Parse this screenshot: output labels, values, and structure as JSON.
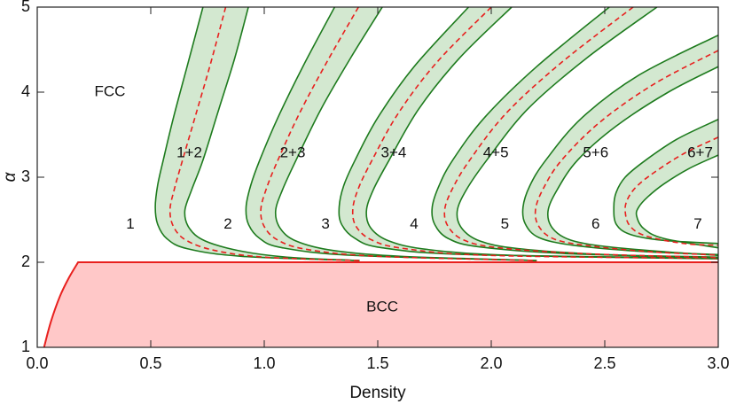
{
  "chart_data": {
    "type": "phase-diagram",
    "xlabel": "Density",
    "ylabel": "α",
    "xlim": [
      0,
      3
    ],
    "ylim": [
      1,
      5
    ],
    "xticks": [
      {
        "value": 0,
        "label": "0.0"
      },
      {
        "value": 0.5,
        "label": "0.5"
      },
      {
        "value": 1,
        "label": "1.0"
      },
      {
        "value": 1.5,
        "label": "1.5"
      },
      {
        "value": 2,
        "label": "2.0"
      },
      {
        "value": 2.5,
        "label": "2.5"
      },
      {
        "value": 3,
        "label": "3.0"
      }
    ],
    "yticks": [
      1,
      2,
      3,
      4,
      5
    ],
    "boundary_color": "#1e7b1e",
    "middle_color": "#e8201e",
    "band_fill": "#d3e8d0",
    "bands": [
      {
        "lower": {
          "x": [
            0.73,
            0.66,
            0.6,
            0.555,
            0.53,
            0.52,
            0.53,
            0.57,
            0.66,
            0.9,
            1.42
          ],
          "y": [
            5,
            4.3,
            3.7,
            3.2,
            2.9,
            2.65,
            2.45,
            2.28,
            2.16,
            2.07,
            2.02
          ]
        },
        "upper": {
          "x": [
            0.93,
            0.87,
            0.8,
            0.73,
            0.68,
            0.65,
            0.67,
            0.74,
            0.9,
            1.1,
            1.42
          ],
          "y": [
            5,
            4.4,
            3.8,
            3.2,
            2.85,
            2.6,
            2.4,
            2.25,
            2.13,
            2.06,
            2.02
          ]
        },
        "middle": {
          "x": [
            0.83,
            0.765,
            0.7,
            0.64,
            0.605,
            0.585,
            0.6,
            0.655,
            0.78,
            1.0,
            1.42
          ],
          "y": [
            5,
            4.35,
            3.75,
            3.2,
            2.87,
            2.62,
            2.42,
            2.26,
            2.14,
            2.06,
            2.02
          ]
        }
      },
      {
        "lower": {
          "x": [
            1.31,
            1.17,
            1.06,
            0.98,
            0.94,
            0.92,
            0.93,
            0.98,
            1.08,
            1.4,
            2.2
          ],
          "y": [
            5,
            4.3,
            3.7,
            3.2,
            2.9,
            2.65,
            2.45,
            2.28,
            2.17,
            2.08,
            2.02
          ]
        },
        "upper": {
          "x": [
            1.52,
            1.38,
            1.25,
            1.14,
            1.08,
            1.05,
            1.07,
            1.14,
            1.3,
            1.6,
            2.2
          ],
          "y": [
            5,
            4.4,
            3.8,
            3.2,
            2.85,
            2.6,
            2.4,
            2.25,
            2.14,
            2.07,
            2.02
          ]
        },
        "middle": {
          "x": [
            1.415,
            1.275,
            1.155,
            1.06,
            1.01,
            0.985,
            1.0,
            1.06,
            1.19,
            1.5,
            2.2
          ],
          "y": [
            5,
            4.35,
            3.75,
            3.2,
            2.87,
            2.62,
            2.42,
            2.26,
            2.15,
            2.07,
            2.02
          ]
        }
      },
      {
        "lower": {
          "x": [
            1.9,
            1.66,
            1.5,
            1.4,
            1.35,
            1.33,
            1.34,
            1.4,
            1.52,
            1.9,
            3.0
          ],
          "y": [
            5,
            4.3,
            3.7,
            3.2,
            2.9,
            2.65,
            2.45,
            2.28,
            2.17,
            2.09,
            2.05
          ]
        },
        "upper": {
          "x": [
            2.09,
            1.86,
            1.68,
            1.55,
            1.48,
            1.45,
            1.47,
            1.55,
            1.72,
            2.1,
            3.0
          ],
          "y": [
            5,
            4.4,
            3.8,
            3.2,
            2.85,
            2.6,
            2.4,
            2.25,
            2.15,
            2.08,
            2.04
          ]
        },
        "middle": {
          "x": [
            2.0,
            1.76,
            1.59,
            1.475,
            1.415,
            1.39,
            1.405,
            1.475,
            1.62,
            2.0,
            3.0
          ],
          "y": [
            5,
            4.35,
            3.75,
            3.2,
            2.87,
            2.62,
            2.42,
            2.26,
            2.16,
            2.08,
            2.045
          ]
        }
      },
      {
        "lower": {
          "x": [
            2.52,
            2.2,
            1.97,
            1.83,
            1.77,
            1.74,
            1.75,
            1.81,
            1.95,
            2.35,
            3.0
          ],
          "y": [
            5,
            4.3,
            3.7,
            3.2,
            2.9,
            2.65,
            2.45,
            2.28,
            2.18,
            2.1,
            2.06
          ]
        },
        "upper": {
          "x": [
            2.73,
            2.42,
            2.16,
            1.98,
            1.89,
            1.85,
            1.87,
            1.95,
            2.12,
            2.5,
            3.0
          ],
          "y": [
            5,
            4.4,
            3.8,
            3.2,
            2.85,
            2.6,
            2.4,
            2.25,
            2.16,
            2.09,
            2.05
          ]
        },
        "middle": {
          "x": [
            2.625,
            2.31,
            2.065,
            1.905,
            1.83,
            1.795,
            1.81,
            1.88,
            2.035,
            2.42,
            3.0
          ],
          "y": [
            5,
            4.35,
            3.75,
            3.2,
            2.87,
            2.62,
            2.42,
            2.26,
            2.17,
            2.1,
            2.055
          ]
        }
      },
      {
        "lower": {
          "x": [
            3.0,
            2.65,
            2.4,
            2.24,
            2.17,
            2.14,
            2.15,
            2.21,
            2.36,
            2.65,
            3.0
          ],
          "y": [
            4.67,
            4.2,
            3.7,
            3.2,
            2.9,
            2.65,
            2.45,
            2.29,
            2.2,
            2.13,
            2.09
          ]
        },
        "upper": {
          "x": [
            3.0,
            2.78,
            2.55,
            2.38,
            2.29,
            2.25,
            2.27,
            2.35,
            2.52,
            2.78,
            3.0
          ],
          "y": [
            4.3,
            4.0,
            3.6,
            3.2,
            2.85,
            2.6,
            2.4,
            2.26,
            2.18,
            2.12,
            2.08
          ]
        },
        "middle": {
          "x": [
            3.0,
            2.72,
            2.48,
            2.31,
            2.23,
            2.195,
            2.21,
            2.28,
            2.44,
            2.72,
            3.0
          ],
          "y": [
            4.49,
            4.1,
            3.65,
            3.2,
            2.87,
            2.62,
            2.42,
            2.27,
            2.19,
            2.12,
            2.085
          ]
        }
      },
      {
        "lower": {
          "x": [
            3.0,
            2.82,
            2.68,
            2.59,
            2.55,
            2.54,
            2.55,
            2.61,
            2.75,
            3.0
          ],
          "y": [
            3.68,
            3.45,
            3.2,
            3.0,
            2.82,
            2.65,
            2.45,
            2.33,
            2.26,
            2.22
          ]
        },
        "upper": {
          "x": [
            3.0,
            2.87,
            2.76,
            2.69,
            2.65,
            2.64,
            2.67,
            2.76,
            3.0
          ],
          "y": [
            3.26,
            3.1,
            2.92,
            2.77,
            2.65,
            2.55,
            2.4,
            2.28,
            2.17
          ]
        },
        "middle": {
          "x": [
            3.0,
            2.85,
            2.72,
            2.64,
            2.6,
            2.59,
            2.61,
            2.68,
            2.85,
            3.0
          ],
          "y": [
            3.47,
            3.28,
            3.06,
            2.89,
            2.74,
            2.6,
            2.43,
            2.31,
            2.22,
            2.2
          ]
        }
      }
    ],
    "bcc_region": {
      "fill": "#ffc8c8",
      "edge": "#e8201e",
      "x": [
        0.03,
        0.06,
        0.1,
        0.14,
        0.18,
        3.0
      ],
      "y": [
        1,
        1.3,
        1.6,
        1.82,
        2.0,
        2.0
      ]
    },
    "labels": [
      {
        "text": "FCC",
        "x": 0.32,
        "y": 4.0
      },
      {
        "text": "BCC",
        "x": 1.52,
        "y": 1.47
      },
      {
        "text": "1",
        "x": 0.41,
        "y": 2.44
      },
      {
        "text": "2",
        "x": 0.84,
        "y": 2.44
      },
      {
        "text": "3",
        "x": 1.27,
        "y": 2.44
      },
      {
        "text": "4",
        "x": 1.66,
        "y": 2.44
      },
      {
        "text": "5",
        "x": 2.06,
        "y": 2.44
      },
      {
        "text": "6",
        "x": 2.46,
        "y": 2.44
      },
      {
        "text": "7",
        "x": 2.91,
        "y": 2.44
      },
      {
        "text": "1+2",
        "x": 0.67,
        "y": 3.28
      },
      {
        "text": "2+3",
        "x": 1.125,
        "y": 3.28
      },
      {
        "text": "3+4",
        "x": 1.57,
        "y": 3.28
      },
      {
        "text": "4+5",
        "x": 2.02,
        "y": 3.28
      },
      {
        "text": "5+6",
        "x": 2.46,
        "y": 3.28
      },
      {
        "text": "6+7",
        "x": 2.92,
        "y": 3.28
      }
    ]
  }
}
